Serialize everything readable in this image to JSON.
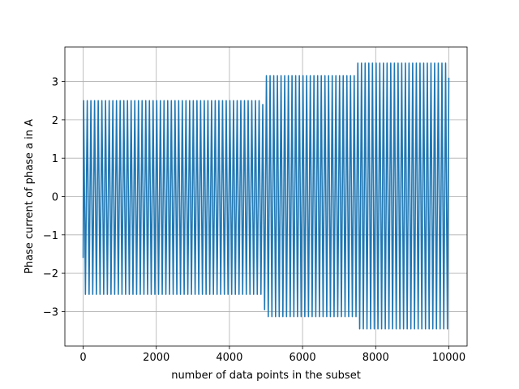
{
  "chart_data": {
    "type": "line",
    "title": "",
    "xlabel": "number of data points in the subset",
    "ylabel": "Phase current of phase a in A",
    "xlim": [
      -500,
      10500
    ],
    "ylim": [
      -3.9,
      3.9
    ],
    "xticks": [
      0,
      2000,
      4000,
      6000,
      8000,
      10000
    ],
    "xtick_labels": [
      "0",
      "2000",
      "4000",
      "6000",
      "8000",
      "10000"
    ],
    "yticks": [
      -3,
      -2,
      -1,
      0,
      1,
      2,
      3
    ],
    "ytick_labels": [
      "−3",
      "−2",
      "−1",
      "0",
      "1",
      "2",
      "3"
    ],
    "grid": true,
    "line_color": "#1f77b4",
    "series": [
      {
        "x_start": 0,
        "x_end": 10000,
        "cycles": 100,
        "start_value": -1.6,
        "end_value": 3.1,
        "segments": [
          {
            "x_from": 0,
            "x_to": 4900,
            "peak_max": 2.5,
            "peak_min": -2.55
          },
          {
            "x_from": 4900,
            "x_to": 5000,
            "peak_max": 2.4,
            "peak_min": -2.95
          },
          {
            "x_from": 5000,
            "x_to": 7500,
            "peak_max": 3.15,
            "peak_min": -3.13
          },
          {
            "x_from": 7500,
            "x_to": 10000,
            "peak_max": 3.48,
            "peak_min": -3.45
          }
        ]
      }
    ]
  }
}
